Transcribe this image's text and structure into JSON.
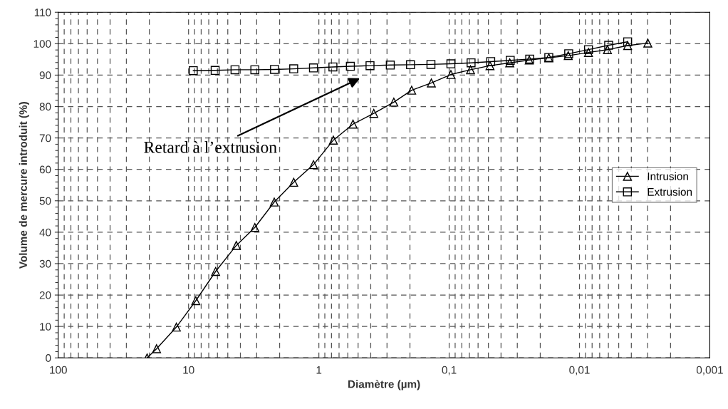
{
  "chart_data": {
    "type": "line",
    "xlabel": "Diamètre (µm)",
    "ylabel": "Volume de mercure introduit (%)",
    "log": "x",
    "xlim": [
      100,
      0.001
    ],
    "xticks": [
      100,
      10,
      1,
      {
        "value": 0.1,
        "label": "0,1"
      },
      {
        "value": 0.01,
        "label": "0,01"
      },
      {
        "value": 0.001,
        "label": "0,001"
      }
    ],
    "ylim": [
      0,
      110
    ],
    "yticks": [
      0,
      10,
      20,
      30,
      40,
      50,
      60,
      70,
      80,
      90,
      100,
      110
    ],
    "grid": true,
    "legend": "center right",
    "line_style": "solid",
    "series": [
      {
        "name": "Intrusion",
        "color": "#000000",
        "marker": "triangle",
        "x": [
          20.8,
          17.6,
          12.4,
          8.8,
          6.2,
          4.3,
          3.1,
          2.2,
          1.56,
          1.1,
          0.774,
          0.547,
          0.379,
          0.266,
          0.194,
          0.137,
          0.097,
          0.0686,
          0.0486,
          0.0343,
          0.0243,
          0.0172,
          0.0122,
          0.00853,
          0.0061,
          0.00427,
          0.00299
        ],
        "values": [
          0,
          2.9,
          9.8,
          18.2,
          27.5,
          35.8,
          41.5,
          49.6,
          55.9,
          61.5,
          69.3,
          74.4,
          77.8,
          81.4,
          85.2,
          87.5,
          90.2,
          91.7,
          93.0,
          93.9,
          94.8,
          95.5,
          96.2,
          97.2,
          98.1,
          99.4,
          100.2
        ]
      },
      {
        "name": "Extrusion",
        "color": "#000000",
        "marker": "square",
        "x": [
          9.2,
          6.25,
          4.4,
          3.1,
          2.19,
          1.56,
          1.1,
          0.78,
          0.573,
          0.405,
          0.283,
          0.198,
          0.138,
          0.097,
          0.0679,
          0.048,
          0.034,
          0.0241,
          0.0172,
          0.0121,
          0.00853,
          0.00597,
          0.00427
        ],
        "values": [
          91.4,
          91.5,
          91.7,
          91.7,
          91.8,
          92.0,
          92.3,
          92.6,
          92.8,
          93.0,
          93.2,
          93.3,
          93.4,
          93.6,
          93.9,
          94.3,
          94.7,
          95.1,
          95.6,
          96.8,
          98.1,
          99.5,
          100.6
        ]
      }
    ],
    "annotations": [
      "Retard à l’extrusion"
    ]
  }
}
